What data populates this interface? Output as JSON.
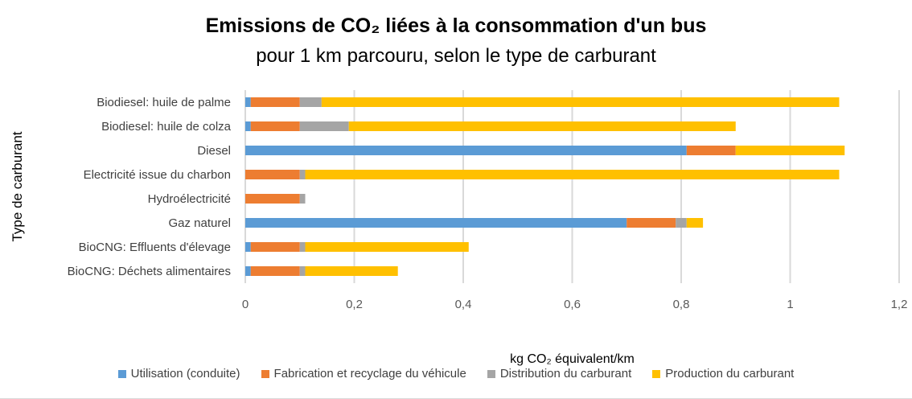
{
  "chart_data": {
    "type": "bar",
    "orientation": "horizontal",
    "stacked": true,
    "title": "Emissions de CO₂ liées à la consommation d'un bus",
    "subtitle": "pour 1 km parcouru, selon le type de carburant",
    "xlabel": "kg CO₂ équivalent/km",
    "ylabel": "Type de carburant",
    "xlim": [
      0,
      1.2
    ],
    "xticks": [
      "0",
      "0,2",
      "0,4",
      "0,6",
      "0,8",
      "1",
      "1,2"
    ],
    "xtick_values": [
      0,
      0.2,
      0.4,
      0.6,
      0.8,
      1,
      1.2
    ],
    "grid": true,
    "legend_position": "bottom",
    "categories": [
      "Biodiesel: huile de palme",
      "Biodiesel: huile de colza",
      "Diesel",
      "Electricité issue du charbon",
      "Hydroélectricité",
      "Gaz naturel",
      "BioCNG: Effluents d'élevage",
      "BioCNG: Déchets alimentaires"
    ],
    "series": [
      {
        "name": "Utilisation (conduite)",
        "color": "#5b9bd5",
        "values": [
          0.01,
          0.01,
          0.81,
          0,
          0,
          0.7,
          0.01,
          0.01
        ]
      },
      {
        "name": "Fabrication et recyclage du véhicule",
        "color": "#ed7d31",
        "values": [
          0.09,
          0.09,
          0.09,
          0.1,
          0.1,
          0.09,
          0.09,
          0.09
        ]
      },
      {
        "name": "Distribution du carburant",
        "color": "#a5a5a5",
        "values": [
          0.04,
          0.09,
          0,
          0.01,
          0.01,
          0.02,
          0.01,
          0.01
        ]
      },
      {
        "name": "Production du carburant",
        "color": "#ffc000",
        "values": [
          0.95,
          0.71,
          0.2,
          0.98,
          0,
          0.03,
          0.3,
          0.17
        ]
      }
    ]
  }
}
